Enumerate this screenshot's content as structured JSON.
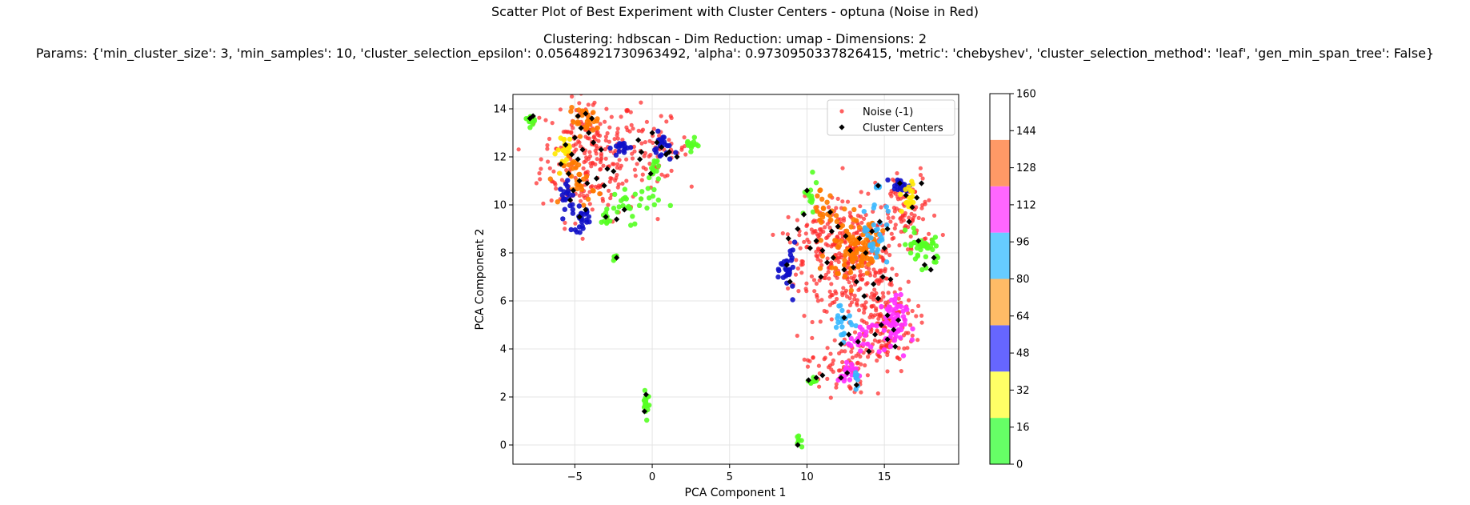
{
  "figure": {
    "title_line1": "Scatter Plot of Best Experiment with Cluster Centers - optuna (Noise in Red)",
    "title_line2": "Clustering: hdbscan - Dim Reduction: umap - Dimensions: 2",
    "title_line3": "Params: {'min_cluster_size': 3, 'min_samples': 10, 'cluster_selection_epsilon': 0.05648921730963492, 'alpha': 0.9730950337826415, 'metric': 'chebyshev', 'cluster_selection_method': 'leaf', 'gen_min_span_tree': False}"
  },
  "chart_data": {
    "type": "scatter",
    "xlabel": "PCA Component 1",
    "ylabel": "PCA Component 2",
    "xlim": [
      -9.0,
      19.8
    ],
    "ylim": [
      -0.8,
      14.6
    ],
    "xticks": [
      -5,
      0,
      5,
      10,
      15
    ],
    "yticks": [
      0,
      2,
      4,
      6,
      8,
      10,
      12,
      14
    ],
    "grid": true,
    "legend": {
      "placement": "upper right",
      "entries": [
        {
          "label": "Noise (-1)",
          "marker": "circle",
          "color": "#ff2a2a"
        },
        {
          "label": "Cluster Centers",
          "marker": "diamond",
          "color": "#000000"
        }
      ]
    },
    "colorbar": {
      "range": [
        0,
        160
      ],
      "ticks": [
        0,
        16,
        32,
        48,
        64,
        80,
        96,
        112,
        128,
        144,
        160
      ],
      "bands": [
        {
          "from": 0,
          "to": 20,
          "color": "#66ff66"
        },
        {
          "from": 20,
          "to": 40,
          "color": "#ffff66"
        },
        {
          "from": 40,
          "to": 60,
          "color": "#6666ff"
        },
        {
          "from": 60,
          "to": 80,
          "color": "#ffbb66"
        },
        {
          "from": 80,
          "to": 100,
          "color": "#66ccff"
        },
        {
          "from": 100,
          "to": 120,
          "color": "#ff66ff"
        },
        {
          "from": 120,
          "to": 140,
          "color": "#ff9966"
        }
      ]
    },
    "noise_regions": [
      {
        "cx": -4.0,
        "cy": 12.0,
        "sx": 1.6,
        "sy": 1.3,
        "n": 260
      },
      {
        "cx": 0.3,
        "cy": 12.3,
        "sx": 1.0,
        "sy": 0.6,
        "n": 60
      },
      {
        "cx": 13.0,
        "cy": 7.6,
        "sx": 1.6,
        "sy": 1.2,
        "n": 300
      },
      {
        "cx": 14.8,
        "cy": 5.0,
        "sx": 1.1,
        "sy": 1.0,
        "n": 160
      },
      {
        "cx": 12.0,
        "cy": 3.3,
        "sx": 1.0,
        "sy": 0.6,
        "n": 60
      },
      {
        "cx": 16.5,
        "cy": 9.6,
        "sx": 1.0,
        "sy": 0.9,
        "n": 80
      },
      {
        "cx": 10.5,
        "cy": 8.4,
        "sx": 0.9,
        "sy": 0.9,
        "n": 70
      }
    ],
    "clusters": [
      {
        "cx": -7.8,
        "cy": 13.6,
        "sx": 0.2,
        "sy": 0.12,
        "color": "#55ff22",
        "n": 16
      },
      {
        "cx": -4.4,
        "cy": 13.5,
        "sx": 0.5,
        "sy": 0.25,
        "color": "#ff7a00",
        "n": 30
      },
      {
        "cx": -5.5,
        "cy": 12.3,
        "sx": 0.35,
        "sy": 0.35,
        "color": "#ffe800",
        "n": 22
      },
      {
        "cx": -4.7,
        "cy": 11.0,
        "sx": 0.5,
        "sy": 0.5,
        "color": "#ff7a00",
        "n": 30
      },
      {
        "cx": -4.6,
        "cy": 9.4,
        "sx": 0.3,
        "sy": 0.25,
        "color": "#1010c8",
        "n": 24
      },
      {
        "cx": -5.4,
        "cy": 10.3,
        "sx": 0.3,
        "sy": 0.3,
        "color": "#1010c8",
        "n": 20
      },
      {
        "cx": -2.0,
        "cy": 12.4,
        "sx": 0.3,
        "sy": 0.15,
        "color": "#1010c8",
        "n": 18
      },
      {
        "cx": -1.3,
        "cy": 10.1,
        "sx": 0.9,
        "sy": 0.4,
        "color": "#55ff22",
        "n": 30
      },
      {
        "cx": 0.1,
        "cy": 11.5,
        "sx": 0.15,
        "sy": 0.3,
        "color": "#55ff22",
        "n": 14
      },
      {
        "cx": 0.7,
        "cy": 12.4,
        "sx": 0.3,
        "sy": 0.3,
        "color": "#1010c8",
        "n": 22
      },
      {
        "cx": 2.5,
        "cy": 12.5,
        "sx": 0.2,
        "sy": 0.12,
        "color": "#55ff22",
        "n": 14
      },
      {
        "cx": -2.4,
        "cy": 7.8,
        "sx": 0.08,
        "sy": 0.08,
        "color": "#55ff22",
        "n": 6
      },
      {
        "cx": -0.4,
        "cy": 1.9,
        "sx": 0.12,
        "sy": 0.35,
        "color": "#55ff22",
        "n": 18
      },
      {
        "cx": 9.5,
        "cy": 0.05,
        "sx": 0.1,
        "sy": 0.12,
        "color": "#55ff22",
        "n": 8
      },
      {
        "cx": 8.8,
        "cy": 7.3,
        "sx": 0.25,
        "sy": 0.5,
        "color": "#1010c8",
        "n": 30
      },
      {
        "cx": 10.1,
        "cy": 10.2,
        "sx": 0.3,
        "sy": 0.4,
        "color": "#55ff22",
        "n": 16
      },
      {
        "cx": 11.0,
        "cy": 9.8,
        "sx": 0.3,
        "sy": 0.6,
        "color": "#ff7a00",
        "n": 20
      },
      {
        "cx": 12.8,
        "cy": 8.0,
        "sx": 0.8,
        "sy": 0.7,
        "color": "#ff7a00",
        "n": 60
      },
      {
        "cx": 13.8,
        "cy": 8.5,
        "sx": 0.5,
        "sy": 0.5,
        "color": "#ff7a00",
        "n": 40
      },
      {
        "cx": 14.4,
        "cy": 8.9,
        "sx": 0.4,
        "sy": 0.7,
        "color": "#38b8ff",
        "n": 28
      },
      {
        "cx": 12.3,
        "cy": 5.2,
        "sx": 0.4,
        "sy": 0.4,
        "color": "#38b8ff",
        "n": 22
      },
      {
        "cx": 15.4,
        "cy": 5.0,
        "sx": 0.5,
        "sy": 0.6,
        "color": "#ff30ff",
        "n": 60
      },
      {
        "cx": 12.6,
        "cy": 3.0,
        "sx": 0.3,
        "sy": 0.3,
        "color": "#ff30ff",
        "n": 18
      },
      {
        "cx": 13.4,
        "cy": 4.3,
        "sx": 0.3,
        "sy": 0.3,
        "color": "#ff30ff",
        "n": 16
      },
      {
        "cx": 16.0,
        "cy": 10.8,
        "sx": 0.3,
        "sy": 0.15,
        "color": "#1010c8",
        "n": 20
      },
      {
        "cx": 16.6,
        "cy": 10.3,
        "sx": 0.3,
        "sy": 0.4,
        "color": "#ffe800",
        "n": 18
      },
      {
        "cx": 17.2,
        "cy": 8.4,
        "sx": 0.35,
        "sy": 0.3,
        "color": "#55ff22",
        "n": 26
      },
      {
        "cx": 18.1,
        "cy": 7.9,
        "sx": 0.2,
        "sy": 0.4,
        "color": "#55ff22",
        "n": 14
      },
      {
        "cx": 14.6,
        "cy": 10.8,
        "sx": 0.08,
        "sy": 0.08,
        "color": "#38b8ff",
        "n": 6
      },
      {
        "cx": 13.2,
        "cy": 2.8,
        "sx": 0.1,
        "sy": 0.2,
        "color": "#38b8ff",
        "n": 8
      },
      {
        "cx": 10.3,
        "cy": 2.7,
        "sx": 0.15,
        "sy": 0.1,
        "color": "#55ff22",
        "n": 8
      },
      {
        "cx": -3.0,
        "cy": 9.4,
        "sx": 0.15,
        "sy": 0.2,
        "color": "#55ff22",
        "n": 10
      }
    ],
    "centers": [
      [
        -7.9,
        13.6
      ],
      [
        -7.7,
        13.7
      ],
      [
        -4.8,
        13.7
      ],
      [
        -4.3,
        13.8
      ],
      [
        -3.9,
        13.6
      ],
      [
        -4.6,
        13.2
      ],
      [
        -4.1,
        13.0
      ],
      [
        -5.0,
        12.8
      ],
      [
        -5.6,
        12.5
      ],
      [
        -5.2,
        12.1
      ],
      [
        -4.5,
        12.3
      ],
      [
        -4.8,
        11.9
      ],
      [
        -5.9,
        11.7
      ],
      [
        -5.4,
        11.3
      ],
      [
        -4.7,
        11.0
      ],
      [
        -5.1,
        10.6
      ],
      [
        -4.2,
        10.9
      ],
      [
        -3.6,
        11.1
      ],
      [
        -3.3,
        12.3
      ],
      [
        -3.8,
        12.6
      ],
      [
        -2.9,
        11.5
      ],
      [
        -5.3,
        10.2
      ],
      [
        -4.7,
        9.5
      ],
      [
        -4.3,
        9.8
      ],
      [
        -2.5,
        11.4
      ],
      [
        -3.1,
        10.8
      ],
      [
        -3.0,
        9.5
      ],
      [
        -2.3,
        9.4
      ],
      [
        -1.8,
        9.8
      ],
      [
        -0.9,
        12.7
      ],
      [
        -0.7,
        12.2
      ],
      [
        0.0,
        13.0
      ],
      [
        0.3,
        12.6
      ],
      [
        0.6,
        12.4
      ],
      [
        0.9,
        12.1
      ],
      [
        1.6,
        12.0
      ],
      [
        1.1,
        12.2
      ],
      [
        -0.1,
        11.3
      ],
      [
        -0.8,
        11.9
      ],
      [
        -2.3,
        7.8
      ],
      [
        -0.4,
        2.1
      ],
      [
        -0.5,
        1.4
      ],
      [
        9.4,
        0.0
      ],
      [
        8.8,
        8.6
      ],
      [
        8.7,
        7.5
      ],
      [
        8.9,
        6.8
      ],
      [
        9.4,
        9.0
      ],
      [
        9.8,
        9.6
      ],
      [
        10.0,
        10.6
      ],
      [
        10.2,
        8.2
      ],
      [
        10.6,
        8.5
      ],
      [
        11.0,
        8.1
      ],
      [
        11.3,
        7.6
      ],
      [
        10.9,
        7.0
      ],
      [
        11.7,
        7.8
      ],
      [
        11.6,
        8.9
      ],
      [
        12.0,
        9.1
      ],
      [
        12.5,
        8.7
      ],
      [
        12.8,
        8.1
      ],
      [
        12.4,
        7.3
      ],
      [
        13.0,
        7.4
      ],
      [
        13.4,
        8.6
      ],
      [
        13.8,
        8.0
      ],
      [
        13.2,
        6.8
      ],
      [
        13.7,
        6.2
      ],
      [
        14.3,
        6.7
      ],
      [
        14.6,
        6.1
      ],
      [
        14.9,
        7.0
      ],
      [
        15.4,
        6.9
      ],
      [
        14.2,
        8.9
      ],
      [
        14.7,
        9.3
      ],
      [
        15.2,
        9.0
      ],
      [
        15.0,
        8.2
      ],
      [
        12.4,
        5.3
      ],
      [
        12.7,
        4.6
      ],
      [
        12.2,
        4.2
      ],
      [
        13.3,
        4.3
      ],
      [
        14.0,
        3.9
      ],
      [
        14.4,
        4.6
      ],
      [
        14.8,
        5.0
      ],
      [
        15.2,
        5.4
      ],
      [
        15.6,
        4.8
      ],
      [
        15.9,
        5.2
      ],
      [
        15.7,
        4.1
      ],
      [
        15.2,
        4.4
      ],
      [
        16.0,
        10.9
      ],
      [
        16.4,
        10.4
      ],
      [
        16.8,
        9.9
      ],
      [
        17.1,
        10.3
      ],
      [
        17.4,
        10.9
      ],
      [
        16.6,
        9.3
      ],
      [
        17.2,
        8.5
      ],
      [
        17.6,
        7.5
      ],
      [
        18.0,
        7.3
      ],
      [
        18.2,
        7.8
      ],
      [
        12.6,
        3.0
      ],
      [
        12.2,
        2.8
      ],
      [
        11.0,
        2.9
      ],
      [
        10.6,
        2.8
      ],
      [
        10.1,
        2.7
      ],
      [
        13.2,
        2.5
      ],
      [
        14.6,
        10.8
      ],
      [
        11.5,
        9.7
      ]
    ]
  }
}
